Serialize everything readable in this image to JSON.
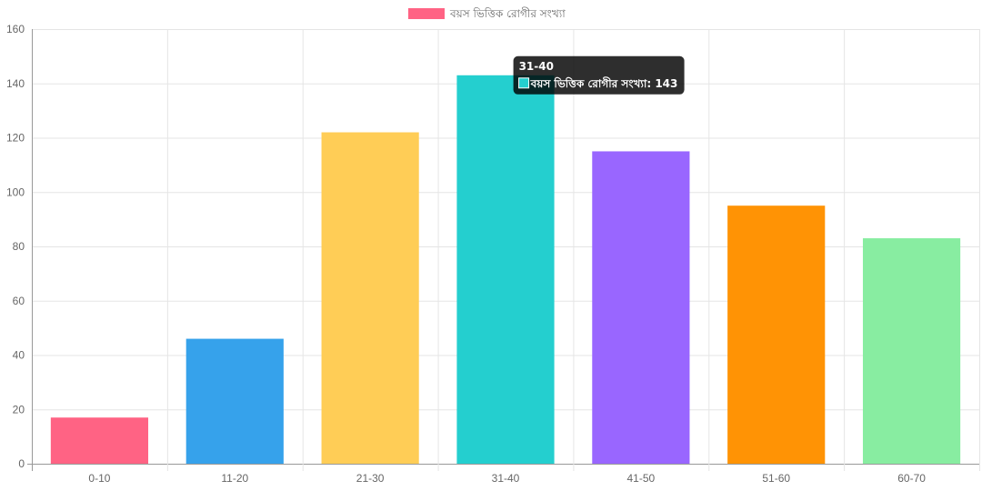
{
  "chart_data": {
    "type": "bar",
    "categories": [
      "0-10",
      "11-20",
      "21-30",
      "31-40",
      "41-50",
      "51-60",
      "60-70"
    ],
    "series": [
      {
        "name": "বয়স ভিত্তিক রোগীর সংখ্যা",
        "values": [
          17,
          46,
          122,
          143,
          115,
          95,
          83
        ],
        "colors": [
          "#ff6384",
          "#36a2eb",
          "#ffcd56",
          "#24cfcf",
          "#9966ff",
          "#ff9305",
          "#88eda1"
        ]
      }
    ],
    "ylim": [
      0,
      160
    ],
    "yticks": [
      0,
      20,
      40,
      60,
      80,
      100,
      120,
      140,
      160
    ],
    "grid": true,
    "legend_position": "top-center",
    "legend_color": "#ff6384"
  },
  "tooltip": {
    "title": "31-40",
    "label": "বয়স ভিত্তিক রোগীর সংখ্যা: 143",
    "swatch_color": "#24cfcf",
    "category_index": 3
  }
}
